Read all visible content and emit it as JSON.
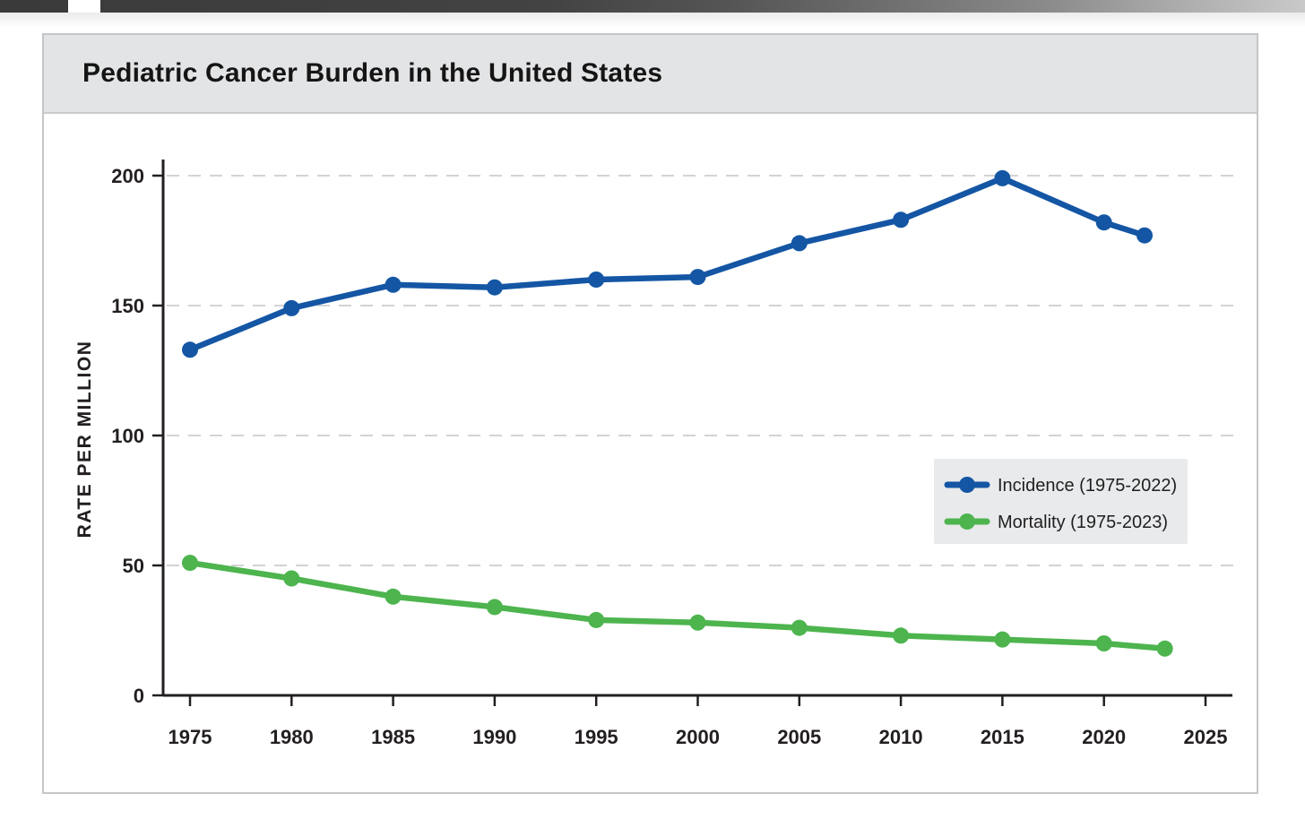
{
  "header": {
    "title": "Pediatric Cancer Burden in the United States"
  },
  "chart_data": {
    "type": "line",
    "title": "Pediatric Cancer Burden in the United States",
    "xlabel": "",
    "ylabel": "RATE PER MILLION",
    "x_ticks": [
      1975,
      1980,
      1985,
      1990,
      1995,
      2000,
      2005,
      2010,
      2015,
      2020,
      2025
    ],
    "y_ticks": [
      0,
      50,
      100,
      150,
      200
    ],
    "xlim": [
      1973,
      2026
    ],
    "ylim": [
      0,
      206
    ],
    "grid": "horizontal-dashed",
    "legend_position": "middle-right",
    "series": [
      {
        "name": "Incidence (1975-2022)",
        "color": "#1456a4",
        "x": [
          1975,
          1980,
          1985,
          1990,
          1995,
          2000,
          2005,
          2010,
          2015,
          2020,
          2022
        ],
        "values": [
          133,
          149,
          158,
          157,
          160,
          161,
          174,
          183,
          199,
          182,
          177
        ]
      },
      {
        "name": "Mortality (1975-2023)",
        "color": "#4db44e",
        "x": [
          1975,
          1980,
          1985,
          1990,
          1995,
          2000,
          2005,
          2010,
          2015,
          2020,
          2023
        ],
        "values": [
          51,
          45,
          38,
          34,
          29,
          28,
          26,
          23,
          21.5,
          20,
          18
        ]
      }
    ],
    "style": {
      "axis_color": "#231f20",
      "grid_color": "#d2d3d4",
      "tick_label_color": "#231f20",
      "legend_bg": "#e9eaec",
      "legend_text_color": "#1f1f1f"
    }
  },
  "colors": {
    "incidence_blue": "#1456a4",
    "mortality_green": "#4db44e",
    "header_band": "#e3e4e6",
    "card_border": "#c5c6c8"
  }
}
